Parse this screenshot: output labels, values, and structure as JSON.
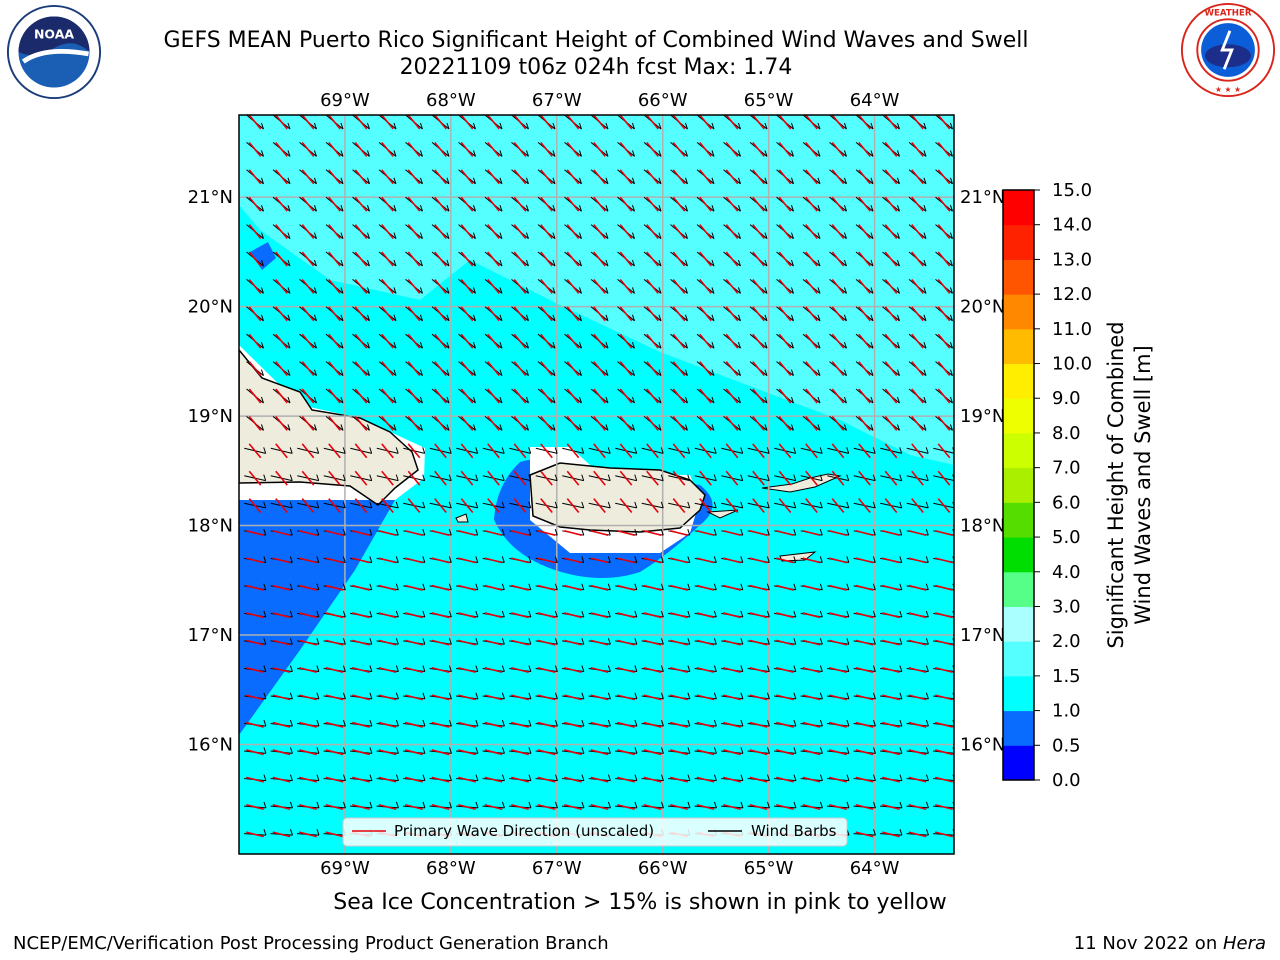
{
  "header": {
    "title_line1": "GEFS MEAN Puerto Rico Significant Height of Combined Wind Waves and Swell",
    "title_line2": "20221109 t06z 024h fcst   Max: 1.74"
  },
  "logos": {
    "noaa_icon": "noaa-logo",
    "nws_icon": "nws-logo"
  },
  "map": {
    "lon_labels": [
      "69°W",
      "68°W",
      "67°W",
      "66°W",
      "65°W",
      "64°W"
    ],
    "lon_values": [
      -69,
      -68,
      -67,
      -66,
      -65,
      -64
    ],
    "lat_labels": [
      "21°N",
      "20°N",
      "19°N",
      "18°N",
      "17°N",
      "16°N"
    ],
    "lat_values": [
      21,
      20,
      19,
      18,
      17,
      16
    ],
    "extent": {
      "lon_min": -70.0,
      "lon_max": -63.25,
      "lat_min": 15.0,
      "lat_max": 21.75
    },
    "background_color": "#00ffff",
    "land_color": "#eeecdd",
    "legend": {
      "wave_label": "Primary Wave Direction (unscaled)",
      "barb_label": "Wind Barbs",
      "wave_color": "#e8000b",
      "barb_color": "#000000"
    }
  },
  "colorbar": {
    "label_line1": "Significant Height of Combined",
    "label_line2": "Wind Waves and Swell [m]",
    "tick_labels": [
      "0.0",
      "0.5",
      "1.0",
      "1.5",
      "2.0",
      "3.0",
      "4.0",
      "5.0",
      "6.0",
      "7.0",
      "8.0",
      "9.0",
      "10.0",
      "11.0",
      "12.0",
      "13.0",
      "14.0",
      "15.0"
    ],
    "colors": [
      "#0000ff",
      "#0a6cff",
      "#00ffff",
      "#55ffff",
      "#aaffff",
      "#55ff88",
      "#00dd00",
      "#55dd00",
      "#aaee00",
      "#ccff00",
      "#eeff00",
      "#ffee00",
      "#ffbb00",
      "#ff8800",
      "#ff5500",
      "#ff2200",
      "#ff0000"
    ]
  },
  "chart_data": {
    "type": "heatmap",
    "title": "GEFS MEAN Puerto Rico Significant Height of Combined Wind Waves and Swell",
    "max_value": 1.74,
    "units": "m",
    "dominant_range": [
      1.0,
      1.5
    ],
    "low_region_range": [
      0.5,
      1.0
    ],
    "high_region_range": [
      1.5,
      2.0
    ]
  },
  "note": "Sea Ice Concentration > 15% is shown in pink to yellow",
  "footer": {
    "left": "NCEP/EMC/Verification Post Processing Product Generation Branch",
    "right_prefix": "11 Nov 2022 on ",
    "right_machine": "Hera"
  }
}
